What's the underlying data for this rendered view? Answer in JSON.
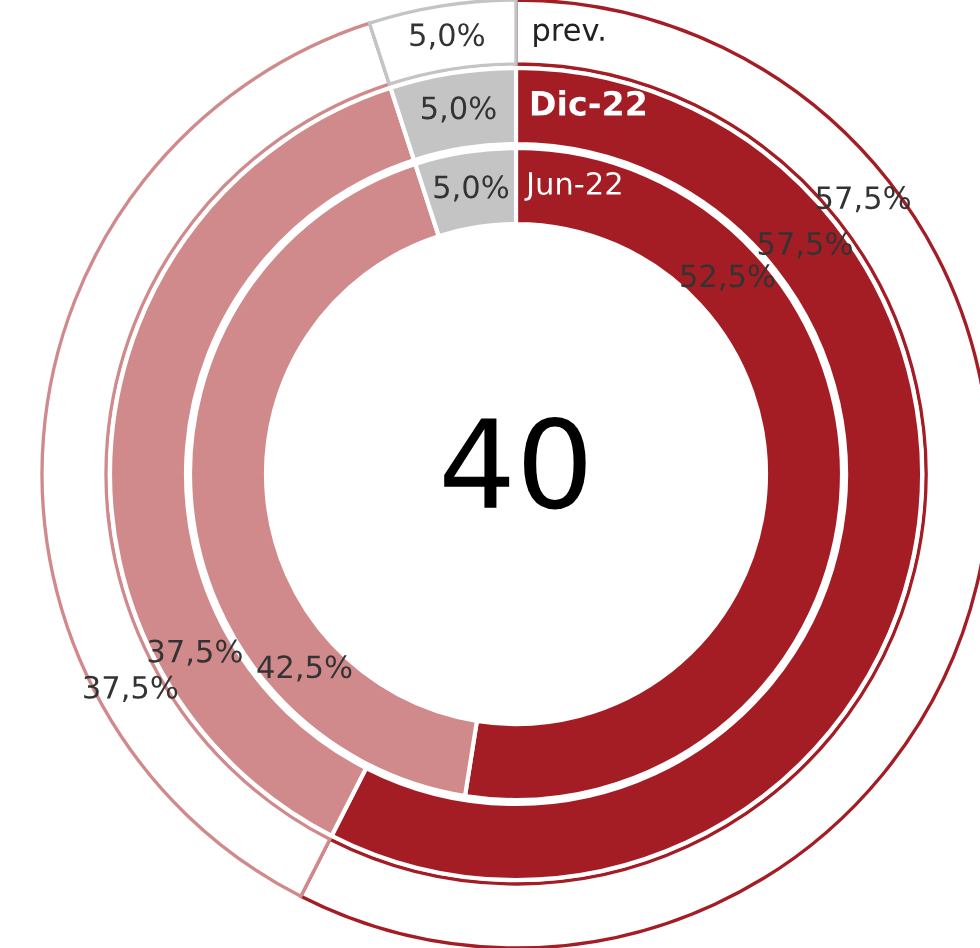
{
  "chart_data": {
    "type": "donut",
    "categories": [
      null,
      null,
      null
    ],
    "series": [
      {
        "name": "prev.",
        "colors": [
          "#ffffff",
          "#ffffff",
          "#ffffff"
        ],
        "values": [
          57.5,
          37.5,
          5.0
        ],
        "value_labels": [
          "57,5%",
          "37,5%",
          "5,0%"
        ]
      },
      {
        "name": "Dic-22",
        "colors": [
          "#a51d24",
          "#d08a8c",
          "#c4c4c4"
        ],
        "values": [
          57.5,
          37.5,
          5.0
        ],
        "value_labels": [
          "57,5%",
          "37,5%",
          "5,0%"
        ]
      },
      {
        "name": "Jun-22",
        "colors": [
          "#a51d24",
          "#d08a8c",
          "#c4c4c4"
        ],
        "values": [
          52.5,
          42.5,
          5.0
        ],
        "value_labels": [
          "52,5%",
          "42,5%",
          "5,0%"
        ]
      }
    ],
    "annotations": [
      "40"
    ]
  }
}
